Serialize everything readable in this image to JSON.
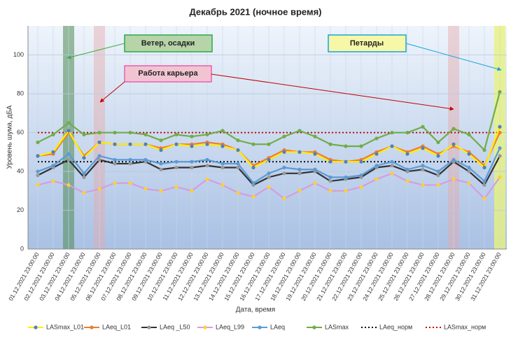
{
  "chart_data": {
    "type": "line",
    "title": "Декабрь 2021 (ночное время)",
    "x_label": "Дата, время",
    "y_label": "Уровень шума, дБА",
    "annotations": [
      "Ветер, осадки",
      "Работа карьера",
      "Петарды"
    ],
    "categories": [
      "01.12.2021 23:00:00",
      "02.12.2021 23:00:00",
      "03.12.2021 23:00:00",
      "04.12.2021 23:00:00",
      "05.12.2021 23:00:00",
      "06.12.2021 23:00:00",
      "07.12.2021 23:00:00",
      "08.12.2021 23:00:00",
      "09.12.2021 23:00:00",
      "10.12.2021 23:00:00",
      "11.12.2021 23:00:00",
      "12.12.2021 23:00:00",
      "13.12.2021 23:00:00",
      "14.12.2021 23:00:00",
      "15.12.2021 23:00:00",
      "16.12.2021 23:00:00",
      "17.12.2021 23:00:00",
      "18.12.2021 23:00:00",
      "19.12.2021 23:00:00",
      "20.12.2021 23:00:00",
      "21.12.2021 23:00:00",
      "22.12.2021 23:00:00",
      "23.12.2021 23:00:00",
      "24.12.2021 23:00:00",
      "25.12.2021 23:00:00",
      "26.12.2021 23:00:00",
      "27.12.2021 23:00:00",
      "28.12.2021 23:00:00",
      "29.12.2021 23:00:00",
      "30.12.2021 23:00:00",
      "31.12.2021 23:00:00"
    ],
    "ylim": [
      0,
      115
    ],
    "yticks": [
      0,
      20,
      40,
      60,
      80,
      100
    ],
    "grid": true,
    "series": [
      {
        "name": "LASmax_L01",
        "color": "#ffee00",
        "marker_color": "#4f81bd",
        "values": [
          48,
          50,
          61,
          47,
          55,
          54,
          54,
          54,
          51,
          54,
          53,
          54,
          53,
          51,
          42,
          46,
          50,
          50,
          49,
          45,
          45,
          45,
          49,
          53,
          49,
          52,
          48,
          54,
          49,
          42,
          63
        ]
      },
      {
        "name": "LAeq_L01",
        "color": "#ed7d31",
        "values": [
          48,
          49,
          60,
          48,
          55,
          54,
          54,
          54,
          52,
          54,
          54,
          55,
          54,
          51,
          43,
          47,
          51,
          50,
          50,
          46,
          45,
          46,
          50,
          53,
          50,
          53,
          49,
          53,
          50,
          43,
          60
        ]
      },
      {
        "name": "LAeq _L50",
        "color": "#333333",
        "marker_color": "#999999",
        "values": [
          38,
          42,
          46,
          37,
          46,
          44,
          44,
          45,
          41,
          42,
          42,
          43,
          42,
          42,
          33,
          37,
          39,
          39,
          40,
          35,
          36,
          37,
          42,
          43,
          40,
          41,
          38,
          45,
          40,
          33,
          48
        ]
      },
      {
        "name": "LAeq_L99",
        "color": "#d59de0",
        "marker_color": "#ffd033",
        "values": [
          33,
          35,
          33,
          29,
          31,
          34,
          34,
          31,
          30,
          32,
          30,
          36,
          33,
          29,
          27,
          32,
          26,
          30,
          34,
          30,
          30,
          32,
          36,
          39,
          35,
          33,
          33,
          36,
          34,
          26,
          37
        ]
      },
      {
        "name": "LAeq",
        "color": "#5b9bd5",
        "values": [
          40,
          43,
          49,
          39,
          48,
          46,
          46,
          46,
          44,
          45,
          45,
          46,
          44,
          44,
          34,
          39,
          42,
          41,
          41,
          37,
          37,
          38,
          43,
          45,
          41,
          43,
          40,
          46,
          42,
          35,
          52
        ]
      },
      {
        "name": "LASmax",
        "color": "#70ad47",
        "values": [
          55,
          59,
          65,
          59,
          60,
          60,
          60,
          59,
          56,
          59,
          58,
          59,
          61,
          56,
          54,
          54,
          58,
          61,
          58,
          54,
          53,
          53,
          57,
          60,
          60,
          63,
          55,
          62,
          59,
          51,
          81
        ]
      },
      {
        "name": "LAeq_норм",
        "color": "#000000",
        "dashed": true,
        "values": [
          45,
          45,
          45,
          45,
          45,
          45,
          45,
          45,
          45,
          45,
          45,
          45,
          45,
          45,
          45,
          45,
          45,
          45,
          45,
          45,
          45,
          45,
          45,
          45,
          45,
          45,
          45,
          45,
          45,
          45,
          45
        ]
      },
      {
        "name": "LASmax_норм",
        "color": "#c00000",
        "dashed": true,
        "values": [
          60,
          60,
          60,
          60,
          60,
          60,
          60,
          60,
          60,
          60,
          60,
          60,
          60,
          60,
          60,
          60,
          60,
          60,
          60,
          60,
          60,
          60,
          60,
          60,
          60,
          60,
          60,
          60,
          60,
          60,
          60
        ]
      }
    ]
  }
}
